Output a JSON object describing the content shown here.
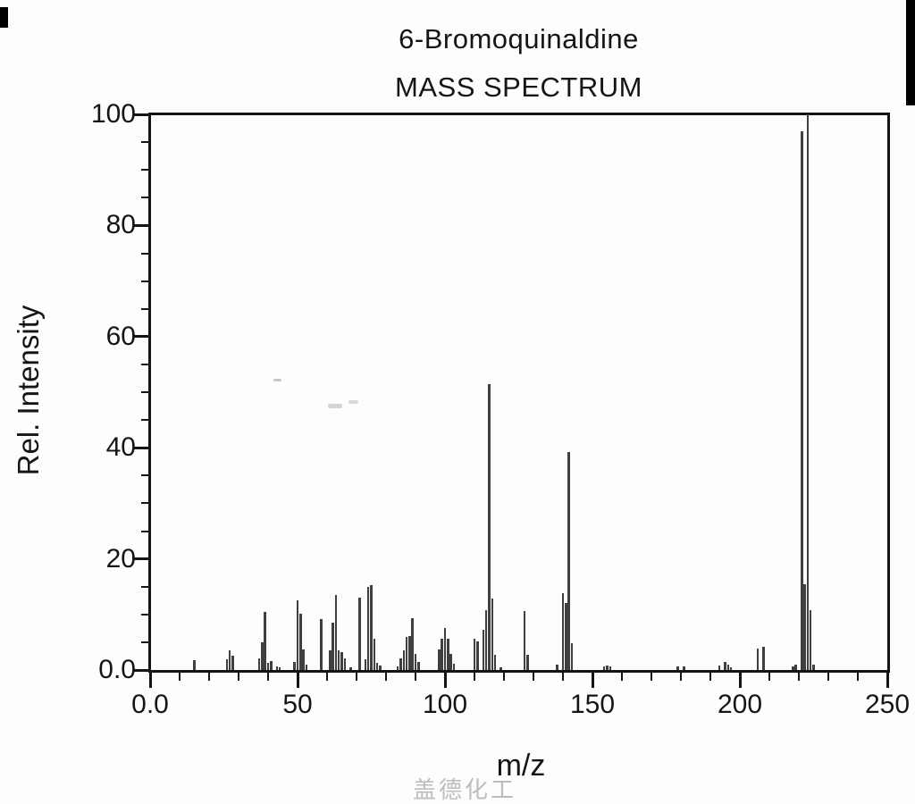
{
  "title": {
    "line1": "6-Bromoquinaldine",
    "line2": "MASS SPECTRUM"
  },
  "axes": {
    "x": {
      "label": "m/z",
      "tick_labels": [
        "0.0",
        "50",
        "100",
        "150",
        "200",
        "250"
      ],
      "tick_values": [
        0,
        50,
        100,
        150,
        200,
        250
      ],
      "minor_step": 10,
      "range": [
        0,
        250
      ]
    },
    "y": {
      "label": "Rel. Intensity",
      "tick_labels": [
        "0.0",
        "20",
        "40",
        "60",
        "80",
        "100"
      ],
      "tick_values": [
        0,
        20,
        40,
        60,
        80,
        100
      ],
      "minor_step": 5,
      "range": [
        0,
        100
      ]
    }
  },
  "watermark": "盖德化工网",
  "colors": {
    "bar": "#3f3f3f",
    "axis": "#141414",
    "text": "#151515",
    "watermark": "#bdbdbd",
    "background": "#fdfdfd"
  },
  "chart_data": {
    "type": "bar",
    "title": "6-Bromoquinaldine MASS SPECTRUM",
    "xlabel": "m/z",
    "ylabel": "Rel. Intensity",
    "xlim": [
      0,
      250
    ],
    "ylim": [
      0,
      100
    ],
    "grid": false,
    "legend": false,
    "peaks_mz_intensity": [
      [
        15,
        1.8
      ],
      [
        26,
        2.0
      ],
      [
        27,
        3.6
      ],
      [
        28,
        2.5
      ],
      [
        37,
        2.1
      ],
      [
        38,
        5.0
      ],
      [
        39,
        10.5
      ],
      [
        40,
        1.3
      ],
      [
        41,
        1.6
      ],
      [
        43,
        0.7
      ],
      [
        44,
        0.5
      ],
      [
        49,
        1.4
      ],
      [
        50,
        12.6
      ],
      [
        51,
        10.2
      ],
      [
        52,
        3.7
      ],
      [
        53,
        1.0
      ],
      [
        58,
        9.1
      ],
      [
        61,
        3.5
      ],
      [
        62,
        8.6
      ],
      [
        63,
        13.5
      ],
      [
        64,
        3.5
      ],
      [
        65,
        3.2
      ],
      [
        66,
        2.1
      ],
      [
        68,
        0.5
      ],
      [
        71,
        13.1
      ],
      [
        73,
        2.0
      ],
      [
        74,
        15.0
      ],
      [
        75,
        15.3
      ],
      [
        76,
        5.6
      ],
      [
        77,
        1.3
      ],
      [
        78,
        0.8
      ],
      [
        84,
        0.7
      ],
      [
        85,
        2.1
      ],
      [
        86,
        3.5
      ],
      [
        87,
        5.9
      ],
      [
        88,
        6.1
      ],
      [
        89,
        9.4
      ],
      [
        90,
        2.9
      ],
      [
        91,
        1.5
      ],
      [
        98,
        3.7
      ],
      [
        99,
        5.6
      ],
      [
        100,
        7.5
      ],
      [
        101,
        5.6
      ],
      [
        102,
        2.9
      ],
      [
        103,
        1.1
      ],
      [
        110,
        5.6
      ],
      [
        111,
        5.1
      ],
      [
        113,
        7.2
      ],
      [
        114,
        10.7
      ],
      [
        115,
        51.5
      ],
      [
        116,
        12.8
      ],
      [
        117,
        2.7
      ],
      [
        119,
        0.5
      ],
      [
        127,
        10.6
      ],
      [
        128,
        2.8
      ],
      [
        138,
        1.0
      ],
      [
        140,
        13.9
      ],
      [
        141,
        12.1
      ],
      [
        142,
        39.2
      ],
      [
        143,
        4.8
      ],
      [
        154,
        0.7
      ],
      [
        155,
        0.8
      ],
      [
        156,
        0.6
      ],
      [
        179,
        0.6
      ],
      [
        181,
        0.7
      ],
      [
        193,
        0.8
      ],
      [
        195,
        1.4
      ],
      [
        196,
        0.9
      ],
      [
        197,
        0.5
      ],
      [
        206,
        3.9
      ],
      [
        208,
        4.1
      ],
      [
        218,
        0.7
      ],
      [
        219,
        1.0
      ],
      [
        221,
        97.0
      ],
      [
        222,
        15.5
      ],
      [
        223,
        100.0
      ],
      [
        224,
        10.7
      ],
      [
        225,
        0.9
      ]
    ]
  }
}
